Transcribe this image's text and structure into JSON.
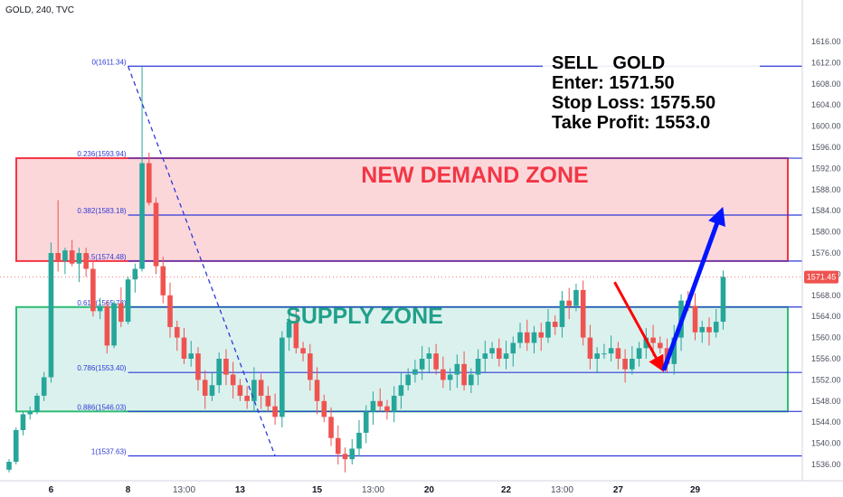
{
  "header": {
    "symbol_label": "GOLD, 240, TVC"
  },
  "trade": {
    "line1": "SELL   GOLD",
    "line2": "Enter: 1571.50",
    "line3": "Stop Loss: 1575.50",
    "line4": "Take Profit: 1553.0"
  },
  "zones": {
    "demand": {
      "label": "NEW DEMAND ZONE",
      "from": 1574.48,
      "to": 1593.94,
      "color": "#f23645"
    },
    "supply": {
      "label": "SUPPLY ZONE",
      "from": 1546.03,
      "to": 1565.78,
      "color": "#22ab94"
    }
  },
  "colors": {
    "bull": "#26a69a",
    "bear": "#ef5350",
    "fib": "#2e3ad6",
    "price_tag": "#ef5350",
    "arrow_down": "#ff0000",
    "arrow_up": "#0015ff"
  },
  "chart_data": {
    "type": "candlestick",
    "title": "GOLD, 240, TVC",
    "ylim": [
      1534,
      1618
    ],
    "y_ticks": [
      1536,
      1540,
      1544,
      1548,
      1552,
      1556,
      1560,
      1564,
      1568,
      1572,
      1576,
      1580,
      1584,
      1588,
      1592,
      1596,
      1600,
      1604,
      1608,
      1612,
      1616
    ],
    "x_ticks": [
      {
        "label": "6",
        "bar": 6,
        "bold": true
      },
      {
        "label": "8",
        "bar": 17,
        "bold": true
      },
      {
        "label": "13:00",
        "bar": 25,
        "bold": false
      },
      {
        "label": "13",
        "bar": 33,
        "bold": true
      },
      {
        "label": "15",
        "bar": 44,
        "bold": true
      },
      {
        "label": "13:00",
        "bar": 52,
        "bold": false
      },
      {
        "label": "20",
        "bar": 60,
        "bold": true
      },
      {
        "label": "22",
        "bar": 71,
        "bold": true
      },
      {
        "label": "13:00",
        "bar": 79,
        "bold": false
      },
      {
        "label": "27",
        "bar": 87,
        "bold": true
      },
      {
        "label": "29",
        "bar": 98,
        "bold": true
      }
    ],
    "last_price": "1571.45",
    "last_price_value": 1571.45,
    "fib_levels": [
      {
        "label": "0(1611.34)",
        "value": 1611.34
      },
      {
        "label": "0.236(1593.94)",
        "value": 1593.94
      },
      {
        "label": "0.382(1583.18)",
        "value": 1583.18
      },
      {
        "label": "0.5(1574.48)",
        "value": 1574.48
      },
      {
        "label": "0.618(1565.78)",
        "value": 1565.78
      },
      {
        "label": "0.786(1553.40)",
        "value": 1553.4
      },
      {
        "label": "0.886(1546.03)",
        "value": 1546.03
      },
      {
        "label": "1(1537.63)",
        "value": 1537.63
      }
    ],
    "fib_start_bar": 17,
    "projection": {
      "down": {
        "from_bar": 86.5,
        "from": 1570.5,
        "to_bar": 93.5,
        "to": 1553.8
      },
      "up": {
        "from_bar": 93.5,
        "from": 1553.8,
        "to_bar": 101.8,
        "to": 1584.5
      }
    },
    "trend_line": {
      "from_bar": 17,
      "from": 1611.34,
      "to_bar": 38,
      "to": 1537.63
    },
    "candles": [
      {
        "o": 1535.0,
        "h": 1537.0,
        "l": 1534.5,
        "c": 1536.5
      },
      {
        "o": 1536.5,
        "h": 1543.0,
        "l": 1536.0,
        "c": 1542.5
      },
      {
        "o": 1542.5,
        "h": 1546.0,
        "l": 1541.5,
        "c": 1545.5
      },
      {
        "o": 1545.5,
        "h": 1547.0,
        "l": 1544.5,
        "c": 1546.0
      },
      {
        "o": 1546.0,
        "h": 1549.5,
        "l": 1545.5,
        "c": 1549.0
      },
      {
        "o": 1549.0,
        "h": 1553.5,
        "l": 1548.0,
        "c": 1552.5
      },
      {
        "o": 1552.5,
        "h": 1578.0,
        "l": 1551.5,
        "c": 1576.0
      },
      {
        "o": 1576.0,
        "h": 1586.0,
        "l": 1572.5,
        "c": 1574.5
      },
      {
        "o": 1574.5,
        "h": 1577.0,
        "l": 1572.0,
        "c": 1576.5
      },
      {
        "o": 1576.5,
        "h": 1578.5,
        "l": 1573.5,
        "c": 1574.0
      },
      {
        "o": 1574.0,
        "h": 1577.0,
        "l": 1570.5,
        "c": 1576.0
      },
      {
        "o": 1576.0,
        "h": 1577.0,
        "l": 1571.5,
        "c": 1573.0
      },
      {
        "o": 1573.0,
        "h": 1574.5,
        "l": 1564.0,
        "c": 1565.0
      },
      {
        "o": 1565.0,
        "h": 1567.5,
        "l": 1563.5,
        "c": 1566.0
      },
      {
        "o": 1566.0,
        "h": 1567.0,
        "l": 1557.0,
        "c": 1558.5
      },
      {
        "o": 1558.5,
        "h": 1567.0,
        "l": 1558.0,
        "c": 1566.5
      },
      {
        "o": 1566.5,
        "h": 1569.5,
        "l": 1562.0,
        "c": 1563.0
      },
      {
        "o": 1563.0,
        "h": 1571.5,
        "l": 1562.5,
        "c": 1571.0
      },
      {
        "o": 1571.0,
        "h": 1574.0,
        "l": 1568.5,
        "c": 1573.0
      },
      {
        "o": 1573.0,
        "h": 1611.3,
        "l": 1572.5,
        "c": 1593.0
      },
      {
        "o": 1593.0,
        "h": 1595.0,
        "l": 1585.0,
        "c": 1585.5
      },
      {
        "o": 1585.5,
        "h": 1586.5,
        "l": 1572.0,
        "c": 1573.5
      }
    ]
  }
}
